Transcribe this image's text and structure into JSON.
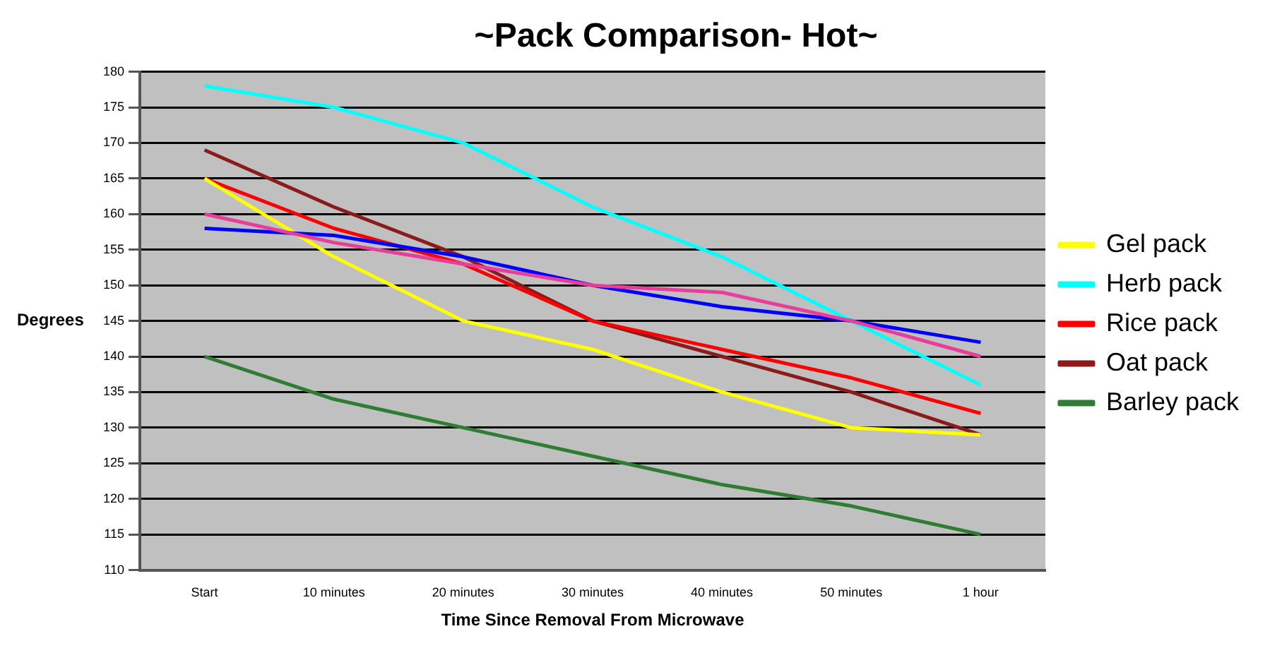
{
  "chart_data": {
    "type": "line",
    "title": "~Pack Comparison- Hot~",
    "xlabel": "Time Since Removal From Microwave",
    "ylabel": "Degrees",
    "categories": [
      "Start",
      "10 minutes",
      "20 minutes",
      "30 minutes",
      "40 minutes",
      "50 minutes",
      "1 hour"
    ],
    "series": [
      {
        "color": "#e83e9a",
        "values": [
          160,
          156,
          153,
          150,
          149,
          145,
          140
        ]
      },
      {
        "color": "#0000ff",
        "values": [
          158,
          157,
          154,
          150,
          147,
          145,
          142
        ]
      },
      {
        "name": "Gel pack",
        "color": "#ffff00",
        "values": [
          165,
          154,
          145,
          141,
          135,
          130,
          129
        ]
      },
      {
        "name": "Herb pack",
        "color": "#00ffff",
        "values": [
          178,
          175,
          170,
          161,
          154,
          145,
          136
        ]
      },
      {
        "name": "Rice pack",
        "color": "#ff0000",
        "values": [
          165,
          158,
          153,
          145,
          141,
          137,
          132
        ]
      },
      {
        "name": "Oat pack",
        "color": "#8b1a1a",
        "values": [
          169,
          161,
          154,
          145,
          140,
          135,
          129
        ]
      },
      {
        "name": "Barley pack",
        "color": "#2e7d32",
        "values": [
          140,
          134,
          130,
          126,
          122,
          119,
          115
        ]
      }
    ],
    "ylim": [
      110,
      180
    ],
    "yticks": [
      110,
      115,
      120,
      125,
      130,
      135,
      140,
      145,
      150,
      155,
      160,
      165,
      170,
      175,
      180
    ],
    "grid": "y",
    "legend": "right",
    "marker": "none",
    "line_style": "solid"
  }
}
